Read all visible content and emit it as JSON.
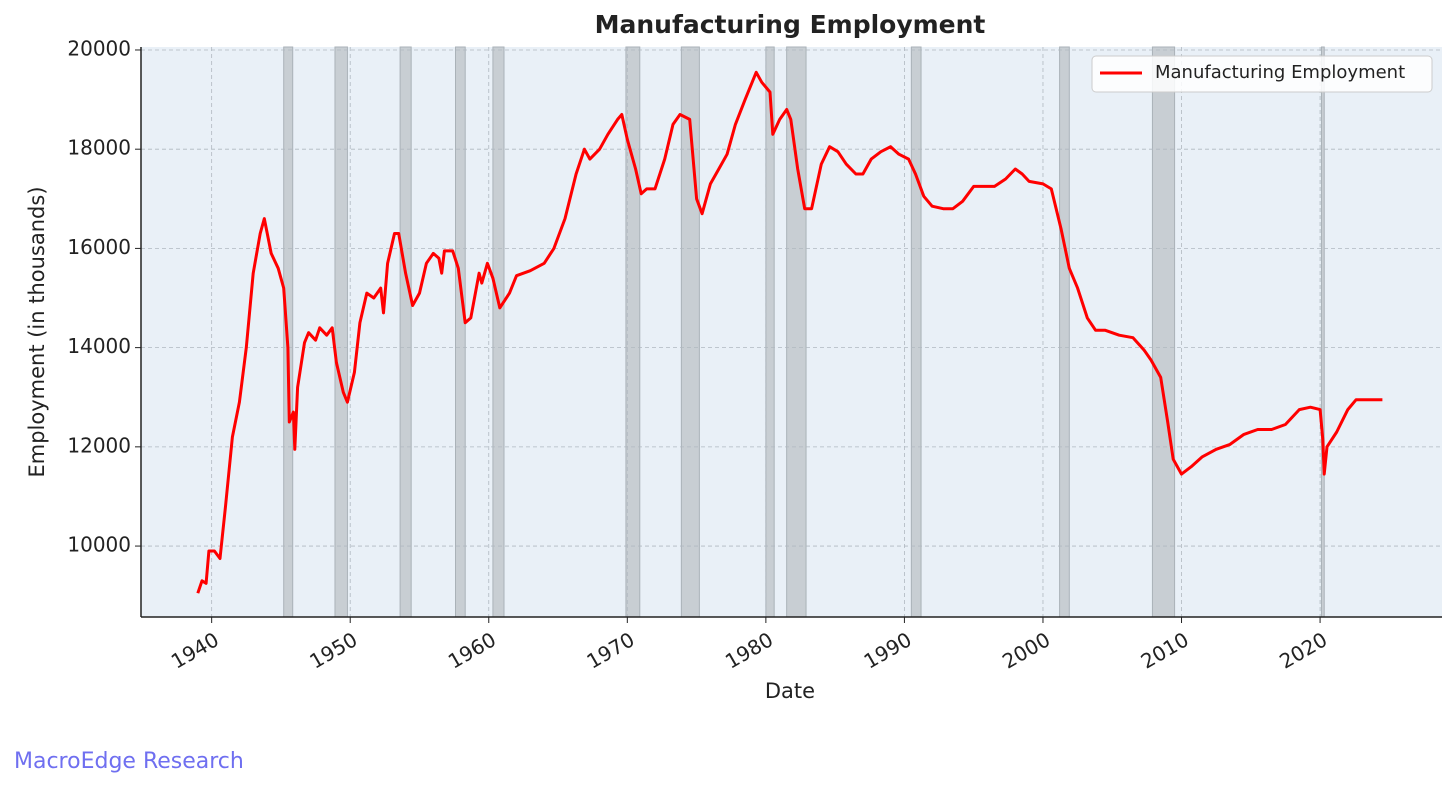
{
  "chart_data": {
    "type": "line",
    "title": "Manufacturing Employment",
    "x_label": "Date",
    "y_label": "Employment (in thousands)",
    "watermark": "MacroEdge Research",
    "legend": "upper right",
    "grid": true,
    "xlim": [
      1934.9,
      2028.8
    ],
    "ylim": [
      8570,
      20060
    ],
    "xticks": [
      1940,
      1950,
      1960,
      1970,
      1980,
      1990,
      2000,
      2010,
      2020
    ],
    "yticks": [
      10000,
      12000,
      14000,
      16000,
      18000,
      20000
    ],
    "recessions": [
      [
        1945.2,
        1945.85
      ],
      [
        1948.9,
        1949.8
      ],
      [
        1953.6,
        1954.4
      ],
      [
        1957.6,
        1958.3
      ],
      [
        1960.3,
        1961.1
      ],
      [
        1969.9,
        1970.9
      ],
      [
        1973.9,
        1975.2
      ],
      [
        1980.0,
        1980.6
      ],
      [
        1981.5,
        1982.9
      ],
      [
        1990.5,
        1991.2
      ],
      [
        2001.2,
        2001.9
      ],
      [
        2007.9,
        2009.5
      ],
      [
        2020.1,
        2020.3
      ]
    ],
    "recession_color": "#c8ced3",
    "series": [
      {
        "name": "Manufacturing Employment",
        "color": "#ff0000",
        "x": [
          1939.0,
          1939.3,
          1939.6,
          1939.8,
          1940.2,
          1940.6,
          1941.0,
          1941.5,
          1942.0,
          1942.5,
          1943.0,
          1943.5,
          1943.8,
          1944.3,
          1944.8,
          1945.2,
          1945.5,
          1945.6,
          1945.9,
          1946.0,
          1946.2,
          1946.7,
          1947.0,
          1947.5,
          1947.8,
          1948.3,
          1948.7,
          1949.0,
          1949.5,
          1949.8,
          1950.3,
          1950.7,
          1951.2,
          1951.7,
          1952.2,
          1952.4,
          1952.7,
          1953.2,
          1953.5,
          1954.0,
          1954.5,
          1955.0,
          1955.5,
          1956.0,
          1956.4,
          1956.6,
          1956.8,
          1957.4,
          1957.8,
          1958.3,
          1958.7,
          1959.3,
          1959.5,
          1959.9,
          1960.3,
          1960.8,
          1961.5,
          1962.0,
          1963.0,
          1964.0,
          1964.7,
          1965.5,
          1966.3,
          1966.9,
          1967.3,
          1968.0,
          1968.6,
          1969.3,
          1969.6,
          1970.0,
          1970.6,
          1971.0,
          1971.4,
          1972.0,
          1972.7,
          1973.3,
          1973.8,
          1974.5,
          1975.0,
          1975.4,
          1976.0,
          1976.6,
          1977.2,
          1977.8,
          1978.5,
          1979.3,
          1979.7,
          1980.3,
          1980.5,
          1981.0,
          1981.5,
          1981.8,
          1982.3,
          1982.8,
          1983.3,
          1984.0,
          1984.6,
          1985.2,
          1985.8,
          1986.5,
          1987.0,
          1987.6,
          1988.3,
          1989.0,
          1989.6,
          1990.3,
          1990.8,
          1991.4,
          1992.0,
          1992.8,
          1993.5,
          1994.2,
          1995.0,
          1995.7,
          1996.5,
          1997.3,
          1998.0,
          1998.5,
          1999.0,
          2000.0,
          2000.6,
          2001.3,
          2001.9,
          2002.5,
          2003.2,
          2003.8,
          2004.5,
          2005.5,
          2006.5,
          2007.3,
          2007.8,
          2008.5,
          2009.0,
          2009.4,
          2010.0,
          2010.7,
          2011.5,
          2012.5,
          2013.5,
          2014.5,
          2015.5,
          2016.5,
          2017.5,
          2018.5,
          2019.3,
          2020.0,
          2020.2,
          2020.3,
          2020.5,
          2021.2,
          2022.0,
          2022.6,
          2023.5,
          2024.5
        ],
        "values": [
          9050,
          9300,
          9250,
          9900,
          9900,
          9750,
          10800,
          12200,
          12900,
          14000,
          15500,
          16300,
          16600,
          15900,
          15600,
          15200,
          14000,
          12500,
          12700,
          11950,
          13200,
          14100,
          14300,
          14150,
          14400,
          14250,
          14400,
          13700,
          13100,
          12900,
          13500,
          14500,
          15100,
          15000,
          15200,
          14700,
          15700,
          16300,
          16300,
          15500,
          14850,
          15100,
          15700,
          15900,
          15800,
          15500,
          15950,
          15950,
          15600,
          14500,
          14600,
          15500,
          15300,
          15700,
          15400,
          14800,
          15100,
          15450,
          15550,
          15700,
          16000,
          16600,
          17500,
          18000,
          17800,
          18000,
          18300,
          18600,
          18700,
          18200,
          17600,
          17100,
          17200,
          17200,
          17800,
          18500,
          18700,
          18600,
          17000,
          16700,
          17300,
          17600,
          17900,
          18500,
          19000,
          19550,
          19350,
          19150,
          18300,
          18600,
          18800,
          18600,
          17600,
          16800,
          16800,
          17700,
          18050,
          17950,
          17700,
          17500,
          17500,
          17800,
          17950,
          18050,
          17900,
          17800,
          17500,
          17050,
          16850,
          16800,
          16800,
          16950,
          17250,
          17250,
          17250,
          17400,
          17600,
          17500,
          17350,
          17300,
          17200,
          16400,
          15600,
          15200,
          14600,
          14350,
          14350,
          14250,
          14200,
          13950,
          13750,
          13400,
          12500,
          11750,
          11450,
          11600,
          11800,
          11950,
          12050,
          12250,
          12350,
          12350,
          12450,
          12750,
          12800,
          12750,
          12150,
          11450,
          12000,
          12300,
          12750,
          12950,
          12950,
          12950
        ]
      }
    ]
  }
}
